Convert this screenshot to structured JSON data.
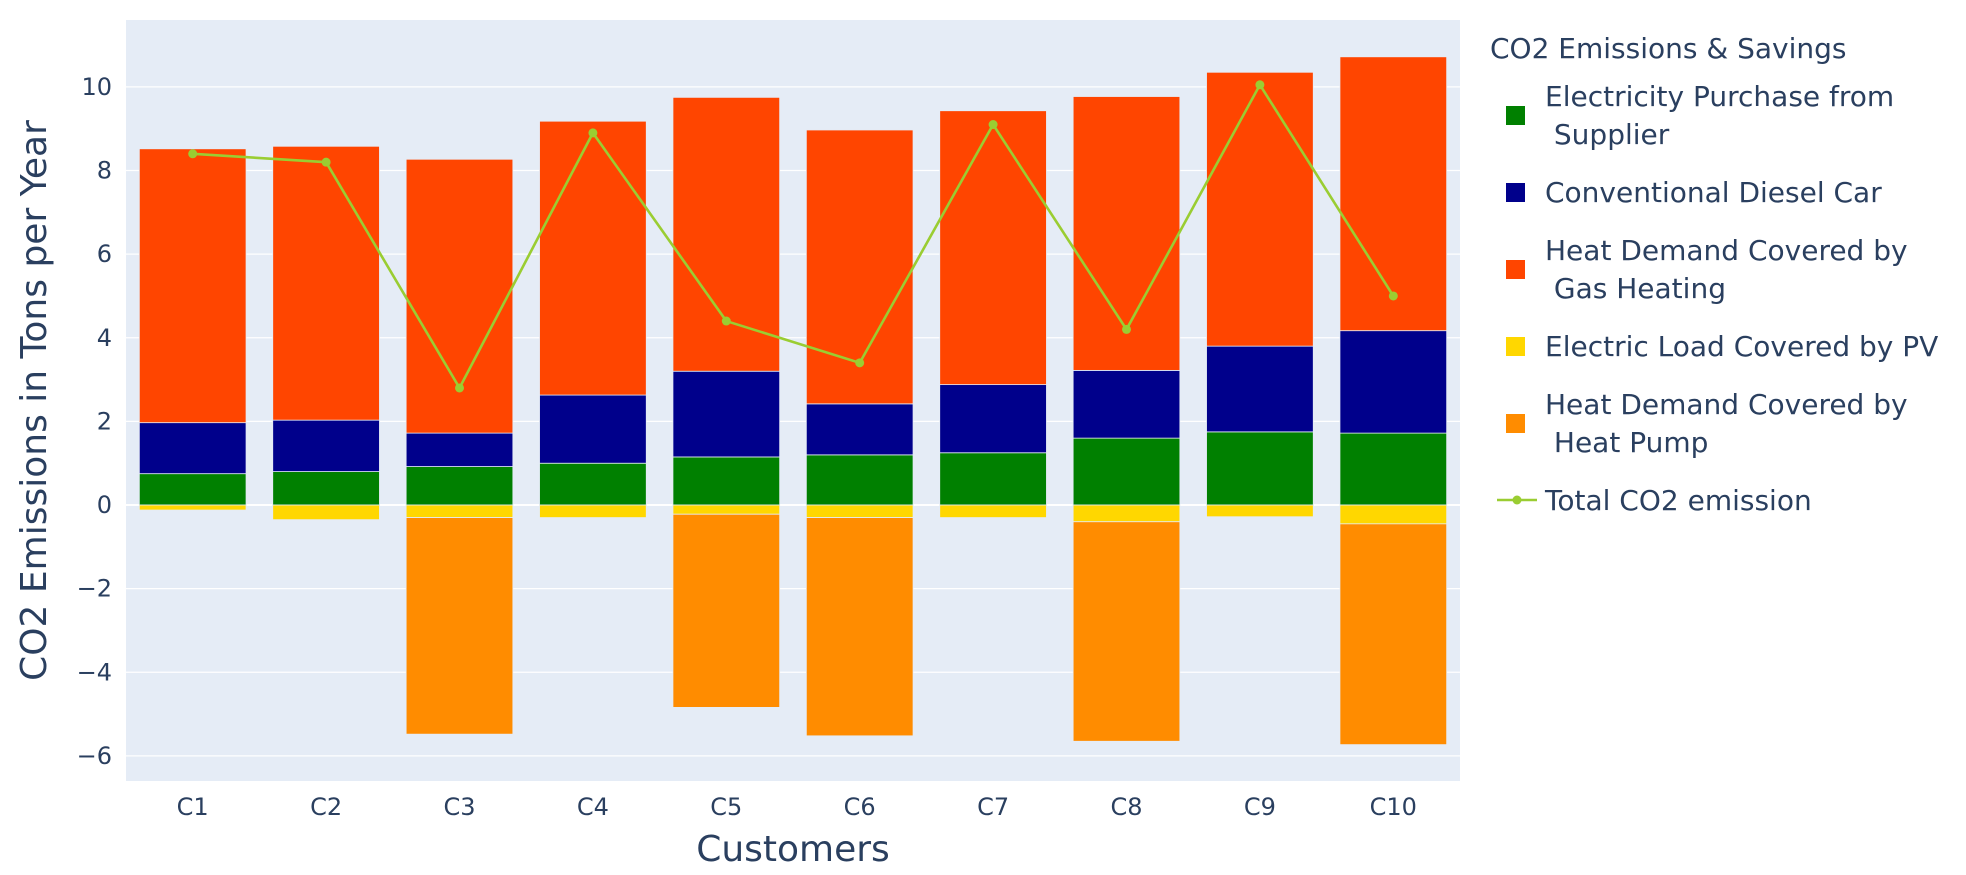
{
  "chart_data": {
    "type": "bar",
    "barmode": "relative",
    "categories": [
      "C1",
      "C2",
      "C3",
      "C4",
      "C5",
      "C6",
      "C7",
      "C8",
      "C9",
      "C10"
    ],
    "series": [
      {
        "name": "Electricity Purchase from Supplier",
        "legend_lines": [
          "Electricity Purchase from",
          " Supplier"
        ],
        "color": "#008000",
        "values": [
          0.75,
          0.8,
          0.92,
          1.0,
          1.15,
          1.2,
          1.25,
          1.6,
          1.75,
          1.72
        ]
      },
      {
        "name": "Conventional Diesel Car",
        "legend_lines": [
          "Conventional Diesel Car"
        ],
        "color": "#00008b",
        "values": [
          1.22,
          1.23,
          0.8,
          1.63,
          2.05,
          1.22,
          1.63,
          1.62,
          2.05,
          2.45
        ]
      },
      {
        "name": "Heat Demand Covered by Gas Heating",
        "legend_lines": [
          "Heat Demand Covered by",
          " Gas Heating"
        ],
        "color": "#ff4500",
        "values": [
          6.55,
          6.55,
          6.55,
          6.55,
          6.55,
          6.55,
          6.55,
          6.55,
          6.55,
          6.55
        ]
      },
      {
        "name": "Electric Load Covered by PV",
        "legend_lines": [
          "Electric Load Covered by PV"
        ],
        "color": "#ffd700",
        "values": [
          -0.12,
          -0.35,
          -0.3,
          -0.3,
          -0.22,
          -0.3,
          -0.3,
          -0.4,
          -0.28,
          -0.45
        ]
      },
      {
        "name": "Heat Demand Covered by Heat Pump",
        "legend_lines": [
          "Heat Demand Covered by",
          " Heat Pump"
        ],
        "color": "#ff8c00",
        "values": [
          0,
          0,
          -5.18,
          0,
          -4.62,
          -5.22,
          0,
          -5.25,
          0,
          -5.28
        ]
      }
    ],
    "line_series": {
      "name": "Total CO2 emission",
      "color": "#9acd32",
      "values": [
        8.4,
        8.2,
        2.8,
        8.9,
        4.4,
        3.4,
        9.1,
        4.2,
        10.05,
        5.0
      ]
    },
    "title": "",
    "xlabel": "Customers",
    "ylabel": "CO2 Emissions in Tons per Year",
    "ylim": [
      -6.6,
      11.6
    ],
    "yticks": [
      -6,
      -4,
      -2,
      0,
      2,
      4,
      6,
      8,
      10
    ],
    "ytick_labels": [
      "−6",
      "−4",
      "−2",
      "0",
      "2",
      "4",
      "6",
      "8",
      "10"
    ],
    "legend_title": "CO2 Emissions & Savings",
    "legend_position": "right",
    "grid": true
  }
}
